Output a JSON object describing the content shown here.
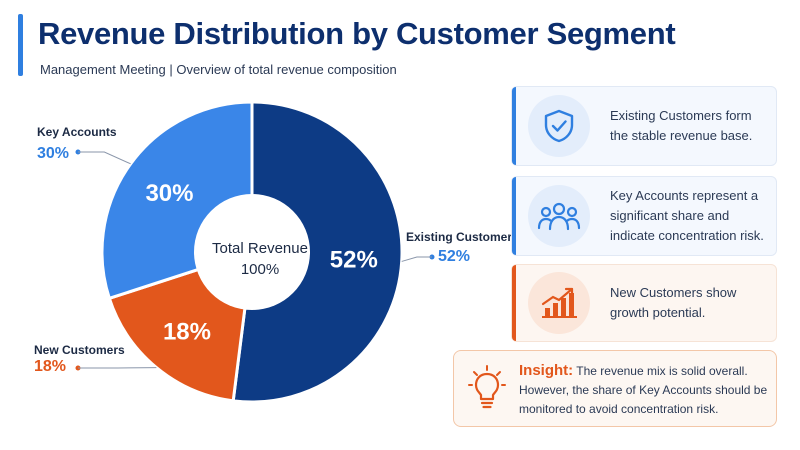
{
  "header": {
    "title": "Revenue Distribution by Customer Segment",
    "subtitle": "Management Meeting | Overview of total revenue composition"
  },
  "chart_data": {
    "type": "pie",
    "title": "Revenue Distribution by Customer Segment",
    "center_label": "Total Revenue",
    "center_value": "100%",
    "slices": [
      {
        "name": "Existing Customers",
        "value": 52,
        "label": "52%",
        "color": "#0d3b85"
      },
      {
        "name": "New Customers",
        "value": 18,
        "label": "18%",
        "color": "#e2571c"
      },
      {
        "name": "Key Accounts",
        "value": 30,
        "label": "30%",
        "color": "#3a86e8"
      }
    ]
  },
  "cards": [
    {
      "text": "Existing Customers form the stable revenue base.",
      "icon": "shield-check-icon",
      "accent": "#2f7fe0"
    },
    {
      "text": "Key Accounts represent a significant share and indicate concentration risk.",
      "icon": "people-group-icon",
      "accent": "#2f7fe0"
    },
    {
      "text": "New Customers show growth potential.",
      "icon": "growth-chart-icon",
      "accent": "#e2571c"
    }
  ],
  "insight": {
    "label": "Insight:",
    "text": "The revenue mix is solid overall. However, the share of Key Accounts should be monitored to avoid concentration risk.",
    "icon": "lightbulb-icon"
  }
}
